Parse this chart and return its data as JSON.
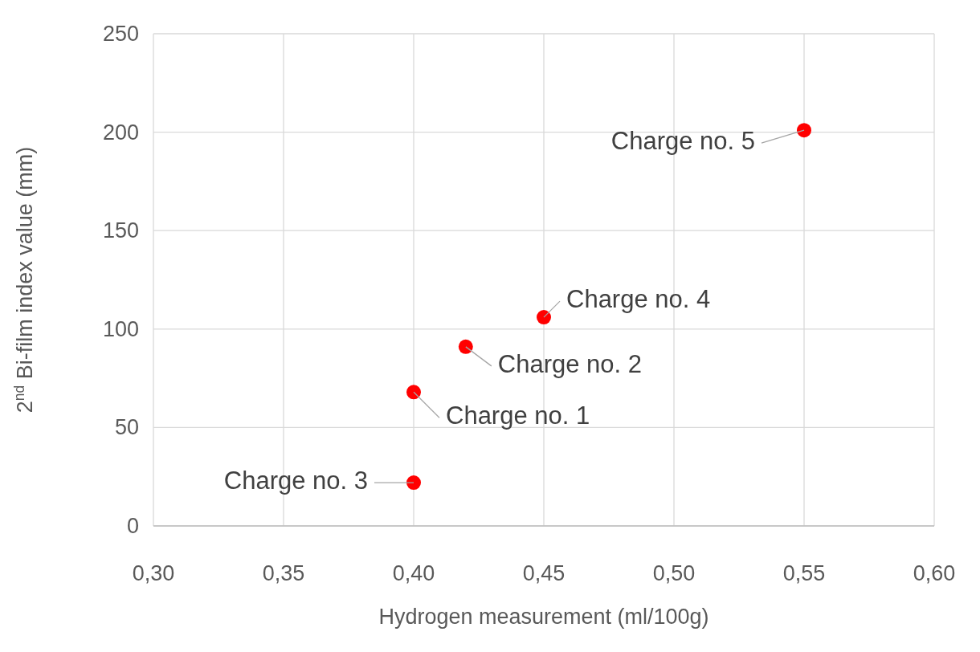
{
  "chart_data": {
    "type": "scatter",
    "xlabel": "Hydrogen measurement (ml/100g)",
    "ylabel": "2$^{nd}$ Bi-film index value (mm)",
    "x": [
      0.4,
      0.42,
      0.4,
      0.45,
      0.55
    ],
    "series": [
      {
        "color": "#ff0000",
        "values": [
          68,
          91,
          22,
          106,
          201
        ]
      }
    ],
    "xlim": [
      0.3,
      0.6
    ],
    "xticks": [
      {
        "value": 0.3,
        "label": "0,30"
      },
      {
        "value": 0.35,
        "label": "0,35"
      },
      {
        "value": 0.4,
        "label": "0,40"
      },
      {
        "value": 0.45,
        "label": "0,45"
      },
      {
        "value": 0.5,
        "label": "0,50"
      },
      {
        "value": 0.55,
        "label": "0,55"
      },
      {
        "value": 0.6,
        "label": "0,60"
      }
    ],
    "ylim": [
      0,
      250
    ],
    "yticks": [
      0,
      50,
      100,
      150,
      200,
      250
    ],
    "grid": true,
    "marker": "circle",
    "annotations": [
      {
        "text": "Charge no. 1",
        "x": 0.4,
        "y": 68
      },
      {
        "text": "Charge no. 2",
        "x": 0.42,
        "y": 91
      },
      {
        "text": "Charge no. 3",
        "x": 0.4,
        "y": 22
      },
      {
        "text": "Charge no. 4",
        "x": 0.45,
        "y": 106
      },
      {
        "text": "Charge no. 5",
        "x": 0.55,
        "y": 201
      }
    ]
  }
}
